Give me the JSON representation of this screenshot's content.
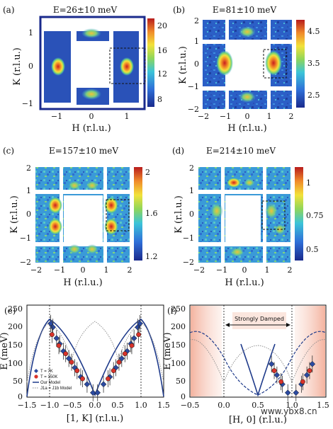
{
  "panels": [
    {
      "id": "a",
      "label": "(a)",
      "title": "E=26±10 meV",
      "xlabel": "H (r.l.u.)",
      "ylabel": "K (r.l.u.)",
      "xticks": [
        "−1",
        "0",
        "1"
      ],
      "yticks": [
        "1",
        "0",
        "−1"
      ],
      "cbar_ticks": [
        "20",
        "16",
        "12",
        "8"
      ]
    },
    {
      "id": "b",
      "label": "(b)",
      "title": "E=81±10 meV",
      "xlabel": "H (r.l.u.)",
      "ylabel": "K (r.l.u.)",
      "xticks": [
        "−2",
        "−1",
        "0",
        "1",
        "2"
      ],
      "yticks": [
        "2",
        "1",
        "0",
        "−1",
        "−2"
      ],
      "cbar_ticks": [
        "4.5",
        "3.5",
        "2.5"
      ]
    },
    {
      "id": "c",
      "label": "(c)",
      "title": "E=157±10 meV",
      "xlabel": "H (r.l.u.)",
      "ylabel": "K (r.l.u.)",
      "xticks": [
        "−2",
        "−1",
        "0",
        "1",
        "2"
      ],
      "yticks": [
        "2",
        "1",
        "0",
        "−1",
        "−2"
      ],
      "cbar_ticks": [
        "2",
        "1.6",
        "1.2"
      ]
    },
    {
      "id": "d",
      "label": "(d)",
      "title": "E=214±10 meV",
      "xlabel": "H (r.l.u.)",
      "ylabel": "K (r.l.u.)",
      "xticks": [
        "−2",
        "−1",
        "0",
        "1",
        "2"
      ],
      "yticks": [
        "2",
        "1",
        "0",
        "−1",
        "−2"
      ],
      "cbar_ticks": [
        "1",
        "0.75",
        "0.5"
      ]
    }
  ],
  "chart_data": [
    {
      "type": "scatter",
      "id": "e",
      "label": "(e)",
      "xlabel": "[1, K] (r.l.u.)",
      "ylabel": "E (meV)",
      "xlim": [
        -1.5,
        1.5
      ],
      "ylim": [
        0,
        250
      ],
      "xticks": [
        "−1.5",
        "−1.0",
        "−0.5",
        "0.0",
        "0.5",
        "1.0",
        "1.5"
      ],
      "yticks": [
        "250",
        "200",
        "150",
        "100",
        "50",
        "0"
      ],
      "legend": {
        "t7k": "T = 7K",
        "t150k": "T = 150K",
        "our_model": "Our Model",
        "j1a_model": "J1a = J1b Model"
      },
      "series": [
        {
          "name": "T = 7K",
          "marker": "diamond",
          "color": "#2b4aa0",
          "points": [
            [
              -0.98,
              200
            ],
            [
              -0.93,
              190
            ],
            [
              -0.85,
              160
            ],
            [
              -0.78,
              145
            ],
            [
              -0.7,
              125
            ],
            [
              -0.58,
              105
            ],
            [
              -0.45,
              80
            ],
            [
              -0.32,
              55
            ],
            [
              -0.18,
              35
            ],
            [
              -0.05,
              12
            ],
            [
              0.05,
              12
            ],
            [
              0.18,
              35
            ],
            [
              0.32,
              55
            ],
            [
              0.45,
              80
            ],
            [
              0.58,
              105
            ],
            [
              0.7,
              125
            ],
            [
              0.78,
              145
            ],
            [
              0.85,
              160
            ],
            [
              0.93,
              190
            ],
            [
              0.98,
              200
            ]
          ]
        },
        {
          "name": "T = 150K",
          "marker": "circle",
          "color": "#d8332a",
          "points": [
            [
              -0.95,
              170
            ],
            [
              -0.8,
              140
            ],
            [
              -0.65,
              118
            ],
            [
              -0.52,
              95
            ],
            [
              -0.4,
              72
            ],
            [
              -0.28,
              50
            ],
            [
              0.28,
              50
            ],
            [
              0.4,
              72
            ],
            [
              0.52,
              95
            ],
            [
              0.65,
              118
            ],
            [
              0.8,
              140
            ],
            [
              0.95,
              170
            ]
          ]
        }
      ]
    },
    {
      "type": "line",
      "id": "f",
      "label": "(f)",
      "xlabel": "[H, 0] (r.l.u.)",
      "ylabel": "E (meV)",
      "xlim": [
        -0.5,
        1.5
      ],
      "ylim": [
        0,
        250
      ],
      "xticks": [
        "−0.5",
        "0.0",
        "0.5",
        "1.0",
        "1.5"
      ],
      "yticks": [
        "250",
        "200",
        "150",
        "100",
        "50",
        "0"
      ],
      "annotation": "Strongly Damped",
      "series": [
        {
          "name": "T = 7K",
          "marker": "diamond",
          "color": "#2b4aa0",
          "points": [
            [
              0.7,
              90
            ],
            [
              0.78,
              60
            ],
            [
              0.86,
              35
            ],
            [
              0.94,
              12
            ],
            [
              1.06,
              12
            ],
            [
              1.14,
              35
            ],
            [
              1.22,
              60
            ],
            [
              1.3,
              90
            ]
          ]
        },
        {
          "name": "T = 150K",
          "marker": "circle",
          "color": "#d8332a",
          "points": [
            [
              0.74,
              72
            ],
            [
              0.84,
              42
            ],
            [
              1.16,
              42
            ],
            [
              1.26,
              72
            ]
          ]
        }
      ]
    }
  ],
  "watermark": "www.ybx8.cn",
  "colors": {
    "marker_blue": "#2b4aa0",
    "marker_red": "#d8332a",
    "model_line": "#1e3a8a",
    "shade": "#f2a58e"
  }
}
